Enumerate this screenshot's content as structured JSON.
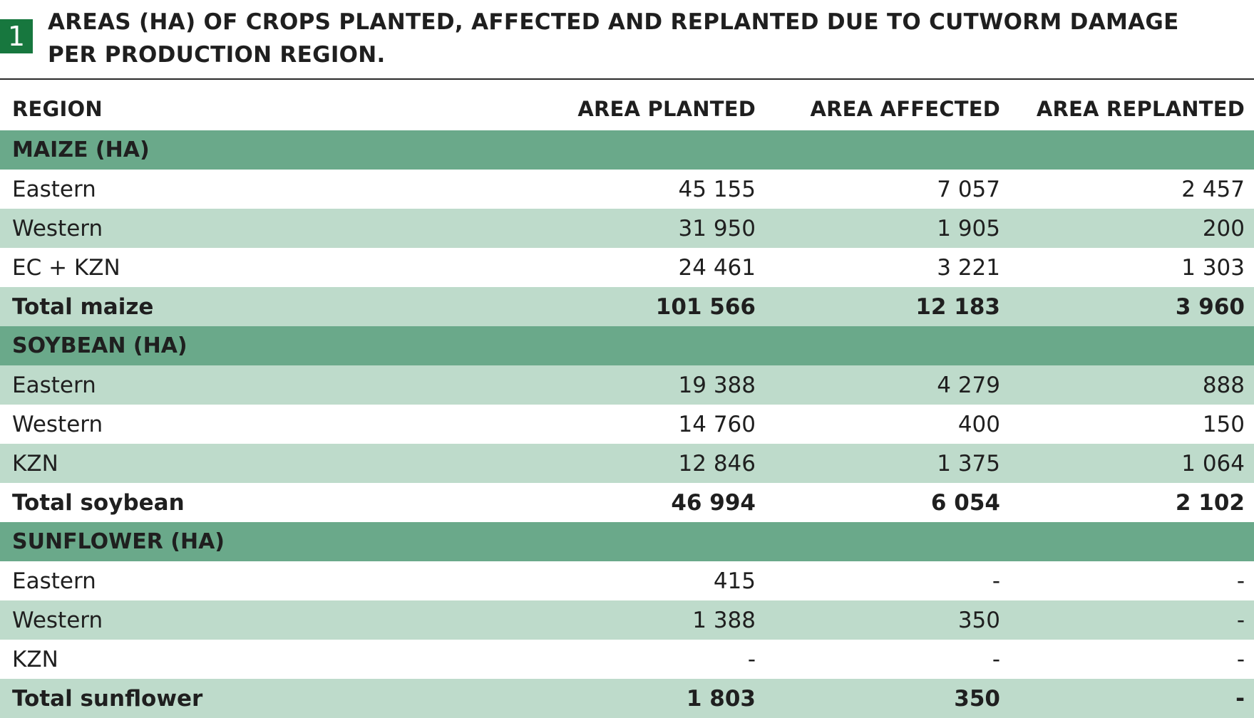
{
  "header": {
    "badge": "1",
    "title": "AREAS (HA) OF CROPS PLANTED, AFFECTED AND REPLANTED DUE TO CUTWORM DAMAGE PER PRODUCTION REGION."
  },
  "columns": [
    "REGION",
    "AREA PLANTED",
    "AREA AFFECTED",
    "AREA REPLANTED"
  ],
  "sections": [
    {
      "title": "MAIZE (HA)",
      "rows": [
        {
          "region": "Eastern",
          "planted": "45 155",
          "affected": "7 057",
          "replanted": "2 457"
        },
        {
          "region": "Western",
          "planted": "31 950",
          "affected": "1 905",
          "replanted": "200"
        },
        {
          "region": "EC + KZN",
          "planted": "24 461",
          "affected": "3 221",
          "replanted": "1 303"
        }
      ],
      "total": {
        "region": "Total maize",
        "planted": "101 566",
        "affected": "12 183",
        "replanted": "3 960"
      }
    },
    {
      "title": "SOYBEAN (HA)",
      "rows": [
        {
          "region": "Eastern",
          "planted": "19 388",
          "affected": "4 279",
          "replanted": "888"
        },
        {
          "region": "Western",
          "planted": "14 760",
          "affected": "400",
          "replanted": "150"
        },
        {
          "region": "KZN",
          "planted": "12 846",
          "affected": "1 375",
          "replanted": "1 064"
        }
      ],
      "total": {
        "region": "Total soybean",
        "planted": "46 994",
        "affected": "6 054",
        "replanted": "2 102"
      }
    },
    {
      "title": "SUNFLOWER (HA)",
      "rows": [
        {
          "region": "Eastern",
          "planted": "415",
          "affected": "-",
          "replanted": "-"
        },
        {
          "region": "Western",
          "planted": "1 388",
          "affected": "350",
          "replanted": "-"
        },
        {
          "region": "KZN",
          "planted": "-",
          "affected": "-",
          "replanted": "-"
        }
      ],
      "total": {
        "region": "Total sunflower",
        "planted": "1 803",
        "affected": "350",
        "replanted": "-"
      }
    }
  ],
  "colors": {
    "badge": "#17773e",
    "section": "#6aa98a",
    "light_row": "#bedbcb",
    "text": "#1f1f1f"
  }
}
